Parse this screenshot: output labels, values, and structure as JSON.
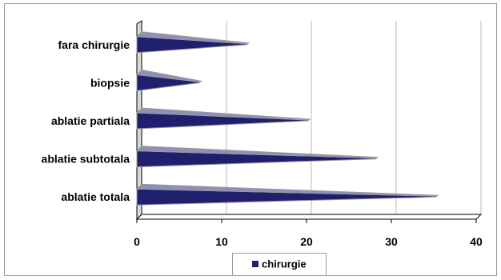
{
  "chart_data": {
    "type": "bar",
    "orientation": "horizontal",
    "style": "3d-cone",
    "categories": [
      "fara chirurgie",
      "biopsie",
      "ablatie partiala",
      "ablatie subtotala",
      "ablatie totala"
    ],
    "series": [
      {
        "name": "chirurgie",
        "values": [
          13,
          7.4,
          20.2,
          28.2,
          35.3
        ],
        "color": "#1f1f6e"
      }
    ],
    "xlim": [
      0,
      40
    ],
    "x_ticks": [
      "0",
      "10",
      "20",
      "30",
      "40"
    ],
    "grid": "vertical",
    "legend_position": "bottom"
  },
  "colors": {
    "bar_fill": "#1f1f6e",
    "bar_top": "#8f8fb8",
    "bar_edge": "#9a9a9a",
    "grid": "#b8b8b8",
    "axis": "#000000",
    "frame": "#9a9a9a"
  }
}
